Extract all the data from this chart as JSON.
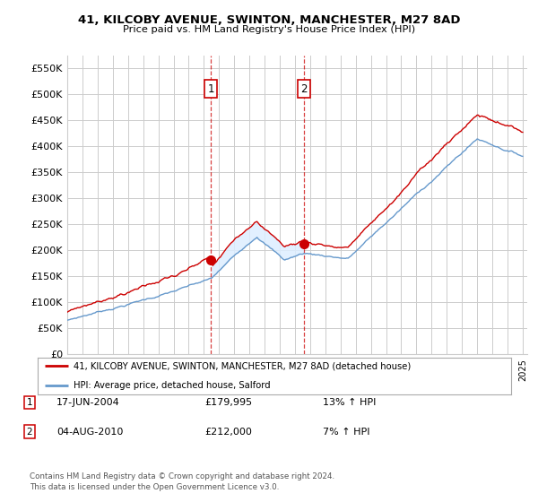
{
  "title": "41, KILCOBY AVENUE, SWINTON, MANCHESTER, M27 8AD",
  "subtitle": "Price paid vs. HM Land Registry's House Price Index (HPI)",
  "legend_line1": "41, KILCOBY AVENUE, SWINTON, MANCHESTER, M27 8AD (detached house)",
  "legend_line2": "HPI: Average price, detached house, Salford",
  "sale1_date": "17-JUN-2004",
  "sale1_price": "£179,995",
  "sale1_hpi": "13% ↑ HPI",
  "sale1_year": 2004.46,
  "sale1_value": 179995,
  "sale2_date": "04-AUG-2010",
  "sale2_price": "£212,000",
  "sale2_hpi": "7% ↑ HPI",
  "sale2_year": 2010.59,
  "sale2_value": 212000,
  "ylim": [
    0,
    575000
  ],
  "yticks": [
    0,
    50000,
    100000,
    150000,
    200000,
    250000,
    300000,
    350000,
    400000,
    450000,
    500000,
    550000
  ],
  "footer1": "Contains HM Land Registry data © Crown copyright and database right 2024.",
  "footer2": "This data is licensed under the Open Government Licence v3.0.",
  "bg_color": "#ffffff",
  "grid_color": "#cccccc",
  "red_color": "#cc0000",
  "blue_color": "#6699cc",
  "fill_color": "#ddeeff"
}
